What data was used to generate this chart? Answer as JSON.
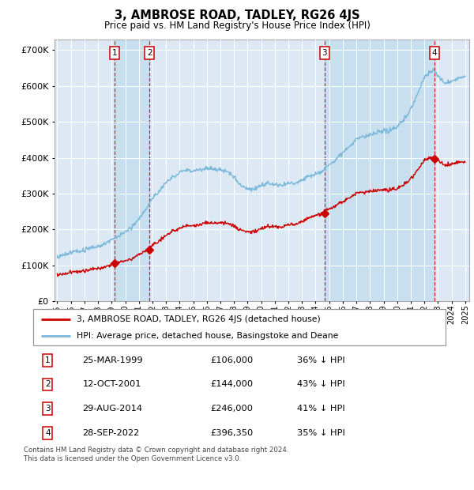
{
  "title": "3, AMBROSE ROAD, TADLEY, RG26 4JS",
  "subtitle": "Price paid vs. HM Land Registry's House Price Index (HPI)",
  "background_color": "#ffffff",
  "plot_bg_color": "#dce9f5",
  "grid_color": "#ffffff",
  "hpi_color": "#7ab8d9",
  "price_color": "#cc0000",
  "shade_color": "#c8dff0",
  "transactions": [
    {
      "num": 1,
      "date_label": "25-MAR-1999",
      "date_x": 1999.23,
      "price": 106000,
      "pct": "36% ↓ HPI"
    },
    {
      "num": 2,
      "date_label": "12-OCT-2001",
      "date_x": 2001.78,
      "price": 144000,
      "pct": "43% ↓ HPI"
    },
    {
      "num": 3,
      "date_label": "29-AUG-2014",
      "date_x": 2014.66,
      "price": 246000,
      "pct": "41% ↓ HPI"
    },
    {
      "num": 4,
      "date_label": "28-SEP-2022",
      "date_x": 2022.74,
      "price": 396350,
      "pct": "35% ↓ HPI"
    }
  ],
  "legend_property_label": "3, AMBROSE ROAD, TADLEY, RG26 4JS (detached house)",
  "legend_hpi_label": "HPI: Average price, detached house, Basingstoke and Deane",
  "footer": "Contains HM Land Registry data © Crown copyright and database right 2024.\nThis data is licensed under the Open Government Licence v3.0.",
  "ylim": [
    0,
    730000
  ],
  "xlim_start": 1994.8,
  "xlim_end": 2025.3
}
